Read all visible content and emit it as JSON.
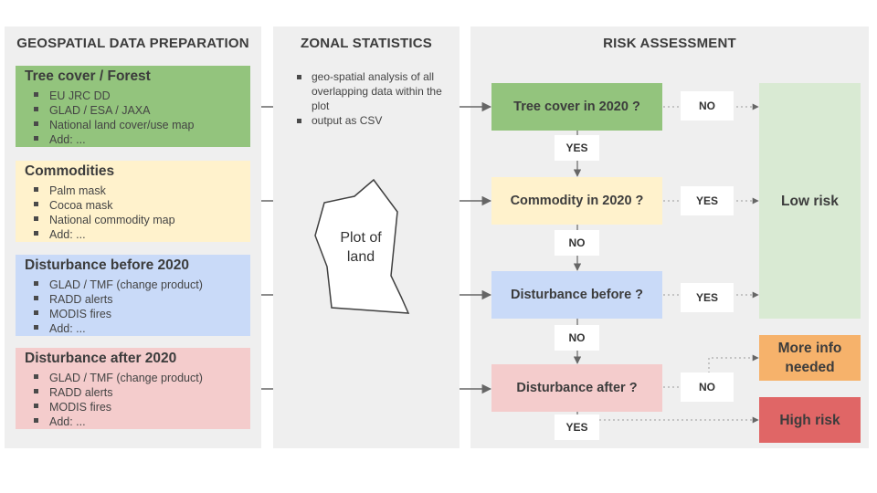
{
  "columns": {
    "prep": "GEOSPATIAL DATA PREPARATION",
    "zonal": "ZONAL STATISTICS",
    "risk": "RISK ASSESSMENT"
  },
  "sources": [
    {
      "title": "Tree cover / Forest",
      "color": "#93c47d",
      "items": [
        "EU JRC DD",
        "GLAD / ESA / JAXA",
        "National land cover/use map",
        "Add: ..."
      ]
    },
    {
      "title": "Commodities",
      "color": "#fff2cc",
      "items": [
        "Palm mask",
        "Cocoa mask",
        "National commodity map",
        "Add: ..."
      ]
    },
    {
      "title": "Disturbance before 2020",
      "color": "#c9daf8",
      "items": [
        "GLAD / TMF (change product)",
        "RADD alerts",
        "MODIS fires",
        "Add: ..."
      ]
    },
    {
      "title": "Disturbance after 2020",
      "color": "#f4cccc",
      "items": [
        "GLAD / TMF (change product)",
        "RADD alerts",
        "MODIS fires",
        "Add: ..."
      ]
    }
  ],
  "zonal_stats": {
    "bullets": [
      "geo-spatial analysis of all overlapping data within the plot",
      "output as CSV"
    ],
    "plot_label": "Plot of land"
  },
  "questions": [
    {
      "label": "Tree cover in 2020 ?",
      "color": "#93c47d"
    },
    {
      "label": "Commodity in 2020 ?",
      "color": "#fff2cc"
    },
    {
      "label": "Disturbance before ?",
      "color": "#c9daf8"
    },
    {
      "label": "Disturbance after ?",
      "color": "#f4cccc"
    }
  ],
  "answers": {
    "q1_side": "NO",
    "q1_down": "YES",
    "q2_side": "YES",
    "q2_down": "NO",
    "q3_side": "YES",
    "q3_down": "NO",
    "q4_side": "NO",
    "q4_down": "YES"
  },
  "outcomes": {
    "low": {
      "label": "Low risk",
      "color": "#d9ead3"
    },
    "more": {
      "label": "More info needed",
      "color": "#f6b26b"
    },
    "high": {
      "label": "High risk",
      "color": "#e06666"
    }
  },
  "colors": {
    "panel_bg": "#efefef",
    "arrow": "#666666",
    "dotted": "#999999"
  }
}
